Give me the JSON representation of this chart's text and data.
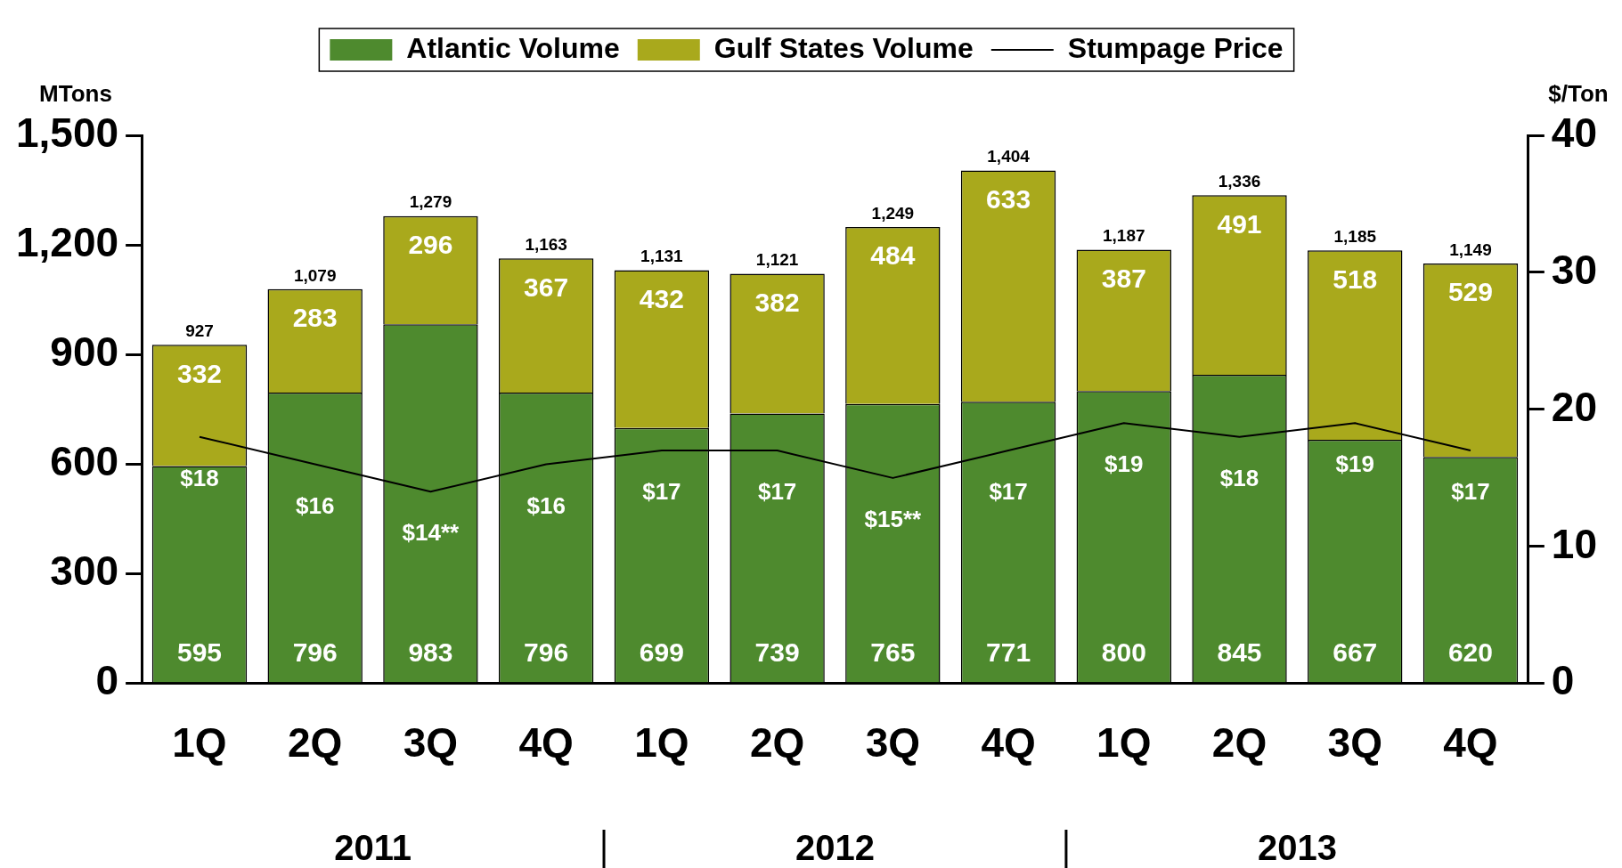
{
  "chart_data": {
    "type": "bar",
    "stacked": true,
    "data_labels": true,
    "legend": "top",
    "grid": false,
    "marker": "none",
    "ylabel": "MTons",
    "y2label": "$/Ton",
    "categories": [
      "1Q",
      "2Q",
      "3Q",
      "4Q",
      "1Q",
      "2Q",
      "3Q",
      "4Q",
      "1Q",
      "2Q",
      "3Q",
      "4Q"
    ],
    "series": [
      {
        "name": "Atlantic Volume",
        "color": "#4e8a2e",
        "values": [
          595,
          796,
          983,
          796,
          699,
          739,
          765,
          771,
          800,
          845,
          667,
          620
        ]
      },
      {
        "name": "Gulf States Volume",
        "color": "#a9a91c",
        "values": [
          332,
          283,
          296,
          367,
          432,
          382,
          484,
          633,
          387,
          491,
          518,
          529
        ]
      },
      {
        "name": "Stumpage Price",
        "type": "line",
        "axis": "y2",
        "color": "#000000",
        "values": [
          18,
          16,
          14,
          16,
          17,
          17,
          15,
          17,
          19,
          18,
          19,
          17
        ],
        "value_labels": [
          "$18",
          "$16",
          "$14**",
          "$16",
          "$17",
          "$17",
          "$15**",
          "$17",
          "$19",
          "$18",
          "$19",
          "$17"
        ]
      }
    ],
    "totals": [
      "927",
      "1,079",
      "1,279",
      "1,163",
      "1,131",
      "1,121",
      "1,249",
      "1,404",
      "1,187",
      "1,336",
      "1,185",
      "1,149"
    ],
    "ylim": [
      0,
      1500
    ],
    "yticks": [
      0,
      300,
      600,
      900,
      {
        "value": 1200,
        "label": "1,200"
      },
      {
        "value": 1500,
        "label": "1,500"
      }
    ],
    "y2lim": [
      0,
      40
    ],
    "y2ticks": [
      0,
      10,
      20,
      30,
      40
    ],
    "annotations": [
      "2011",
      "2012",
      "2013"
    ]
  }
}
